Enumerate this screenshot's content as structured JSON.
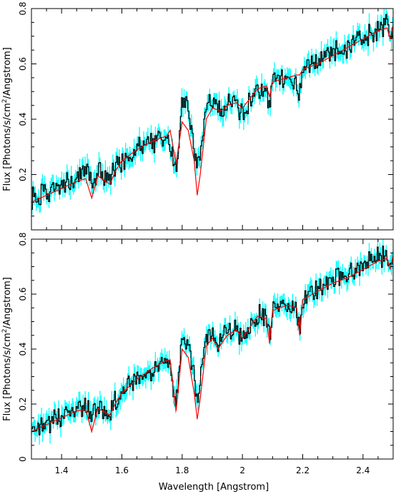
{
  "chart_data": [
    {
      "type": "line",
      "title": "",
      "xlabel": "",
      "ylabel": "Flux [Photons/s/cm^2/Angstrom]",
      "ylabel_parts": {
        "pre": "Flux [Photons/s/cm",
        "sup": "2",
        "post": "/Angstrom]"
      },
      "xlim": [
        1.3,
        2.5
      ],
      "ylim": [
        0.0,
        0.8
      ],
      "xticks": [
        1.4,
        1.6,
        1.8,
        2.0,
        2.2,
        2.4
      ],
      "xtick_labels": [
        "",
        "",
        "",
        "",
        "",
        ""
      ],
      "yticks": [
        0.2,
        0.4,
        0.6,
        0.8
      ],
      "ytick_labels": [
        "0.2",
        "0.4",
        "0.6",
        "0.8"
      ],
      "grid": false,
      "colors": {
        "data": "#000000",
        "errors": "#00ffff",
        "model": "#ff0000"
      },
      "series": [
        {
          "role": "model",
          "x": [
            1.3,
            1.35,
            1.4,
            1.45,
            1.48,
            1.5,
            1.52,
            1.56,
            1.58,
            1.6,
            1.65,
            1.7,
            1.75,
            1.76,
            1.78,
            1.8,
            1.82,
            1.84,
            1.85,
            1.86,
            1.88,
            1.9,
            1.93,
            1.95,
            1.98,
            2.0,
            2.05,
            2.08,
            2.09,
            2.1,
            2.15,
            2.18,
            2.19,
            2.2,
            2.25,
            2.3,
            2.35,
            2.4,
            2.45,
            2.48,
            2.49,
            2.5
          ],
          "y": [
            0.1,
            0.125,
            0.15,
            0.175,
            0.185,
            0.115,
            0.195,
            0.165,
            0.215,
            0.25,
            0.29,
            0.32,
            0.34,
            0.36,
            0.24,
            0.39,
            0.36,
            0.25,
            0.125,
            0.2,
            0.4,
            0.44,
            0.43,
            0.45,
            0.46,
            0.44,
            0.51,
            0.52,
            0.48,
            0.535,
            0.55,
            0.56,
            0.56,
            0.58,
            0.6,
            0.63,
            0.66,
            0.69,
            0.72,
            0.73,
            0.69,
            0.74
          ]
        },
        {
          "role": "data",
          "x": [
            1.3,
            1.35,
            1.4,
            1.45,
            1.48,
            1.5,
            1.52,
            1.56,
            1.58,
            1.6,
            1.65,
            1.7,
            1.75,
            1.76,
            1.78,
            1.8,
            1.82,
            1.84,
            1.85,
            1.86,
            1.88,
            1.9,
            1.93,
            1.95,
            1.98,
            2.0,
            2.05,
            2.08,
            2.09,
            2.1,
            2.15,
            2.18,
            2.19,
            2.2,
            2.25,
            2.3,
            2.35,
            2.4,
            2.45,
            2.48,
            2.49,
            2.5
          ],
          "y": [
            0.11,
            0.13,
            0.15,
            0.19,
            0.21,
            0.175,
            0.21,
            0.175,
            0.22,
            0.25,
            0.295,
            0.32,
            0.33,
            0.3,
            0.22,
            0.47,
            0.46,
            0.3,
            0.22,
            0.29,
            0.45,
            0.47,
            0.44,
            0.45,
            0.46,
            0.42,
            0.51,
            0.5,
            0.45,
            0.535,
            0.55,
            0.53,
            0.49,
            0.58,
            0.61,
            0.64,
            0.66,
            0.69,
            0.73,
            0.74,
            0.7,
            0.74
          ]
        }
      ]
    },
    {
      "type": "line",
      "title": "",
      "xlabel": "Wavelength [Angstrom]",
      "ylabel": "Flux [Photons/s/cm^2/Angstrom]",
      "ylabel_parts": {
        "pre": "Flux [Photons/s/cm",
        "sup": "2",
        "post": "/Angstrom]"
      },
      "xlim": [
        1.3,
        2.5
      ],
      "ylim": [
        0.0,
        0.8
      ],
      "xticks": [
        1.4,
        1.6,
        1.8,
        2.0,
        2.2,
        2.4
      ],
      "xtick_labels": [
        "1.4",
        "1.6",
        "1.8",
        "2",
        "2.2",
        "2.4"
      ],
      "yticks": [
        0.0,
        0.2,
        0.4,
        0.6,
        0.8
      ],
      "ytick_labels": [
        "0",
        "0.2",
        "0.4",
        "0.6",
        "0.8"
      ],
      "grid": false,
      "colors": {
        "data": "#000000",
        "errors": "#00ffff",
        "model": "#ff0000"
      },
      "series": [
        {
          "role": "model",
          "x": [
            1.3,
            1.35,
            1.4,
            1.45,
            1.48,
            1.5,
            1.52,
            1.56,
            1.58,
            1.6,
            1.65,
            1.7,
            1.75,
            1.76,
            1.78,
            1.8,
            1.82,
            1.84,
            1.85,
            1.86,
            1.88,
            1.9,
            1.92,
            1.93,
            1.95,
            1.98,
            2.0,
            2.05,
            2.08,
            2.09,
            2.1,
            2.15,
            2.18,
            2.19,
            2.2,
            2.25,
            2.3,
            2.35,
            2.4,
            2.45,
            2.48,
            2.49,
            2.5
          ],
          "y": [
            0.1,
            0.125,
            0.15,
            0.175,
            0.18,
            0.1,
            0.185,
            0.16,
            0.205,
            0.24,
            0.29,
            0.33,
            0.36,
            0.36,
            0.175,
            0.4,
            0.37,
            0.24,
            0.145,
            0.22,
            0.41,
            0.44,
            0.4,
            0.42,
            0.45,
            0.47,
            0.44,
            0.52,
            0.51,
            0.42,
            0.54,
            0.56,
            0.55,
            0.45,
            0.58,
            0.61,
            0.64,
            0.66,
            0.69,
            0.72,
            0.73,
            0.69,
            0.74
          ]
        },
        {
          "role": "data",
          "x": [
            1.3,
            1.35,
            1.4,
            1.45,
            1.48,
            1.5,
            1.52,
            1.56,
            1.58,
            1.6,
            1.65,
            1.7,
            1.75,
            1.76,
            1.78,
            1.8,
            1.82,
            1.84,
            1.85,
            1.86,
            1.88,
            1.9,
            1.92,
            1.93,
            1.95,
            1.98,
            2.0,
            2.05,
            2.08,
            2.09,
            2.1,
            2.15,
            2.18,
            2.19,
            2.2,
            2.25,
            2.3,
            2.35,
            2.4,
            2.45,
            2.48,
            2.49,
            2.5
          ],
          "y": [
            0.11,
            0.13,
            0.15,
            0.18,
            0.2,
            0.15,
            0.2,
            0.165,
            0.21,
            0.24,
            0.29,
            0.32,
            0.36,
            0.34,
            0.21,
            0.45,
            0.42,
            0.3,
            0.2,
            0.28,
            0.45,
            0.46,
            0.41,
            0.44,
            0.46,
            0.48,
            0.43,
            0.53,
            0.51,
            0.44,
            0.54,
            0.56,
            0.54,
            0.47,
            0.58,
            0.62,
            0.65,
            0.67,
            0.7,
            0.73,
            0.74,
            0.71,
            0.74
          ]
        }
      ]
    }
  ]
}
